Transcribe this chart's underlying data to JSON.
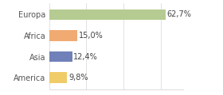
{
  "categories": [
    "Europa",
    "Africa",
    "Asia",
    "America"
  ],
  "values": [
    62.7,
    15.0,
    12.4,
    9.8
  ],
  "labels": [
    "62,7%",
    "15,0%",
    "12,4%",
    "9,8%"
  ],
  "bar_colors": [
    "#b5cb92",
    "#f0aa72",
    "#7080b8",
    "#f0cc68"
  ],
  "xlim": [
    0,
    72
  ],
  "background_color": "#ffffff",
  "bar_height": 0.5,
  "label_fontsize": 7,
  "tick_fontsize": 7,
  "grid_color": "#dddddd"
}
